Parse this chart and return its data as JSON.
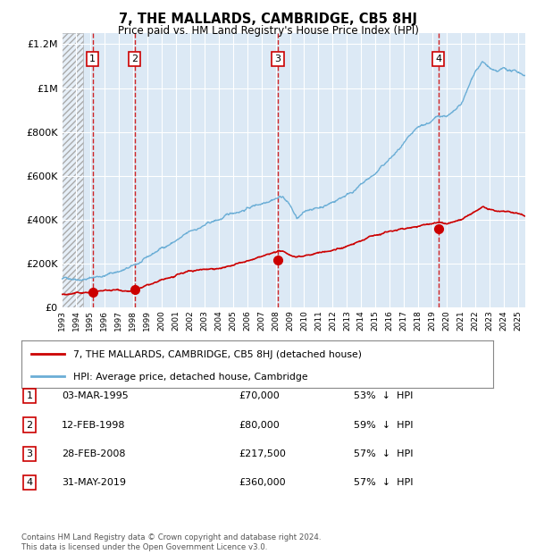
{
  "title": "7, THE MALLARDS, CAMBRIDGE, CB5 8HJ",
  "subtitle": "Price paid vs. HM Land Registry's House Price Index (HPI)",
  "legend_property": "7, THE MALLARDS, CAMBRIDGE, CB5 8HJ (detached house)",
  "legend_hpi": "HPI: Average price, detached house, Cambridge",
  "footer_line1": "Contains HM Land Registry data © Crown copyright and database right 2024.",
  "footer_line2": "This data is licensed under the Open Government Licence v3.0.",
  "transactions": [
    {
      "num": 1,
      "date": "03-MAR-1995",
      "price": 70000,
      "pct": "53%",
      "dir": "↓",
      "label": "HPI"
    },
    {
      "num": 2,
      "date": "12-FEB-1998",
      "price": 80000,
      "pct": "59%",
      "dir": "↓",
      "label": "HPI"
    },
    {
      "num": 3,
      "date": "28-FEB-2008",
      "price": 217500,
      "pct": "57%",
      "dir": "↓",
      "label": "HPI"
    },
    {
      "num": 4,
      "date": "31-MAY-2019",
      "price": 360000,
      "pct": "57%",
      "dir": "↓",
      "label": "HPI"
    }
  ],
  "transaction_dates_decimal": [
    1995.17,
    1998.12,
    2008.16,
    2019.41
  ],
  "transaction_prices": [
    70000,
    80000,
    217500,
    360000
  ],
  "hpi_color": "#6baed6",
  "property_color": "#cc0000",
  "dashed_line_color": "#cc0000",
  "background_color": "#ffffff",
  "plot_bg_color": "#dce9f5",
  "grid_color": "#ffffff",
  "ylim": [
    0,
    1250000
  ],
  "xlim_start": 1993.0,
  "xlim_end": 2025.5,
  "hatch_end": 1994.5,
  "yticks": [
    0,
    200000,
    400000,
    600000,
    800000,
    1000000,
    1200000
  ],
  "ytick_labels": [
    "£0",
    "£200K",
    "£400K",
    "£600K",
    "£800K",
    "£1M",
    "£1.2M"
  ],
  "xtick_years": [
    1993,
    1994,
    1995,
    1996,
    1997,
    1998,
    1999,
    2000,
    2001,
    2002,
    2003,
    2004,
    2005,
    2006,
    2007,
    2008,
    2009,
    2010,
    2011,
    2012,
    2013,
    2014,
    2015,
    2016,
    2017,
    2018,
    2019,
    2020,
    2021,
    2022,
    2023,
    2024,
    2025
  ]
}
